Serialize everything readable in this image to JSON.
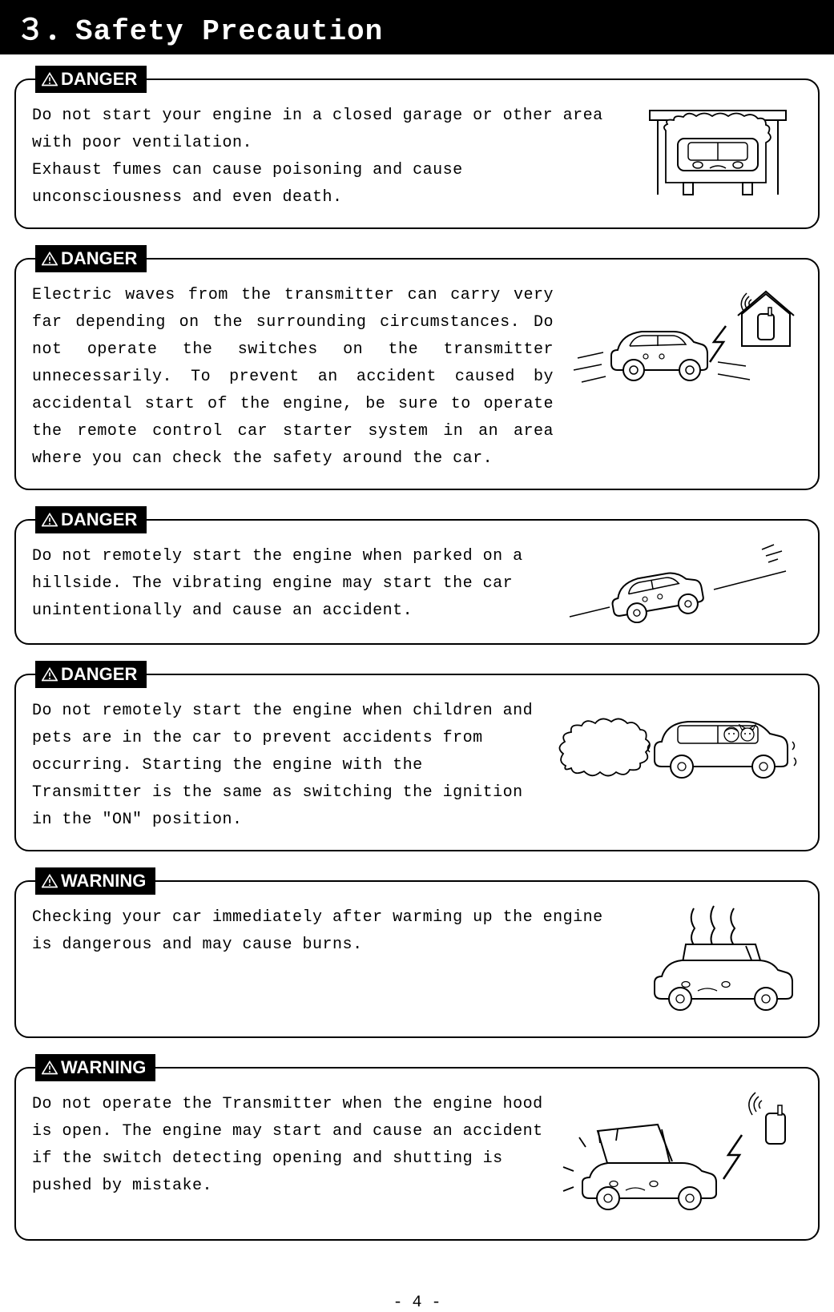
{
  "header": {
    "title": "３．Safety Precaution"
  },
  "page_number": "- 4 -",
  "labels": {
    "danger": "DANGER",
    "warning": "WARNING"
  },
  "colors": {
    "black": "#000000",
    "white": "#ffffff"
  },
  "typography": {
    "header_fontsize": 36,
    "label_fontsize": 22,
    "body_fontsize": 20,
    "font_family": "MS Gothic, Courier New, monospace"
  },
  "callouts": [
    {
      "level": "danger",
      "text": "Do not start your engine in a closed garage or other area with poor ventilation.\nExhaust fumes can cause poisoning and cause unconsciousness and even death.",
      "illustration": "car-in-garage",
      "justify": false
    },
    {
      "level": "danger",
      "text": "Electric waves from the transmitter can carry very far depending on the surrounding circumstances. Do not operate the switches on the transmitter unnecessarily. To prevent an accident caused by accidental start of the engine, be sure to operate the remote control car starter system in an area where you can check the safety around the car.",
      "illustration": "car-remote-house",
      "justify": true
    },
    {
      "level": "danger",
      "text": "Do not remotely start the engine when parked on a hillside. The vibrating engine may start the car unintentionally and cause an accident.",
      "illustration": "car-on-hill",
      "justify": false
    },
    {
      "level": "danger",
      "text": "Do not remotely start the engine when children and pets are in the car to prevent accidents from occurring. Starting the engine with the Transmitter is the same as switching the ignition in the \"ON\" position.",
      "illustration": "car-children-pets",
      "justify": false
    },
    {
      "level": "warning",
      "text": "Checking your car immediately after warming up the engine is dangerous and may cause burns.",
      "illustration": "car-hot-engine",
      "justify": false
    },
    {
      "level": "warning",
      "text": "Do not operate the Transmitter when the engine hood is open. The engine may start and cause an accident if the switch detecting opening and shutting is pushed by mistake.",
      "illustration": "car-hood-open-remote",
      "justify": false
    }
  ]
}
